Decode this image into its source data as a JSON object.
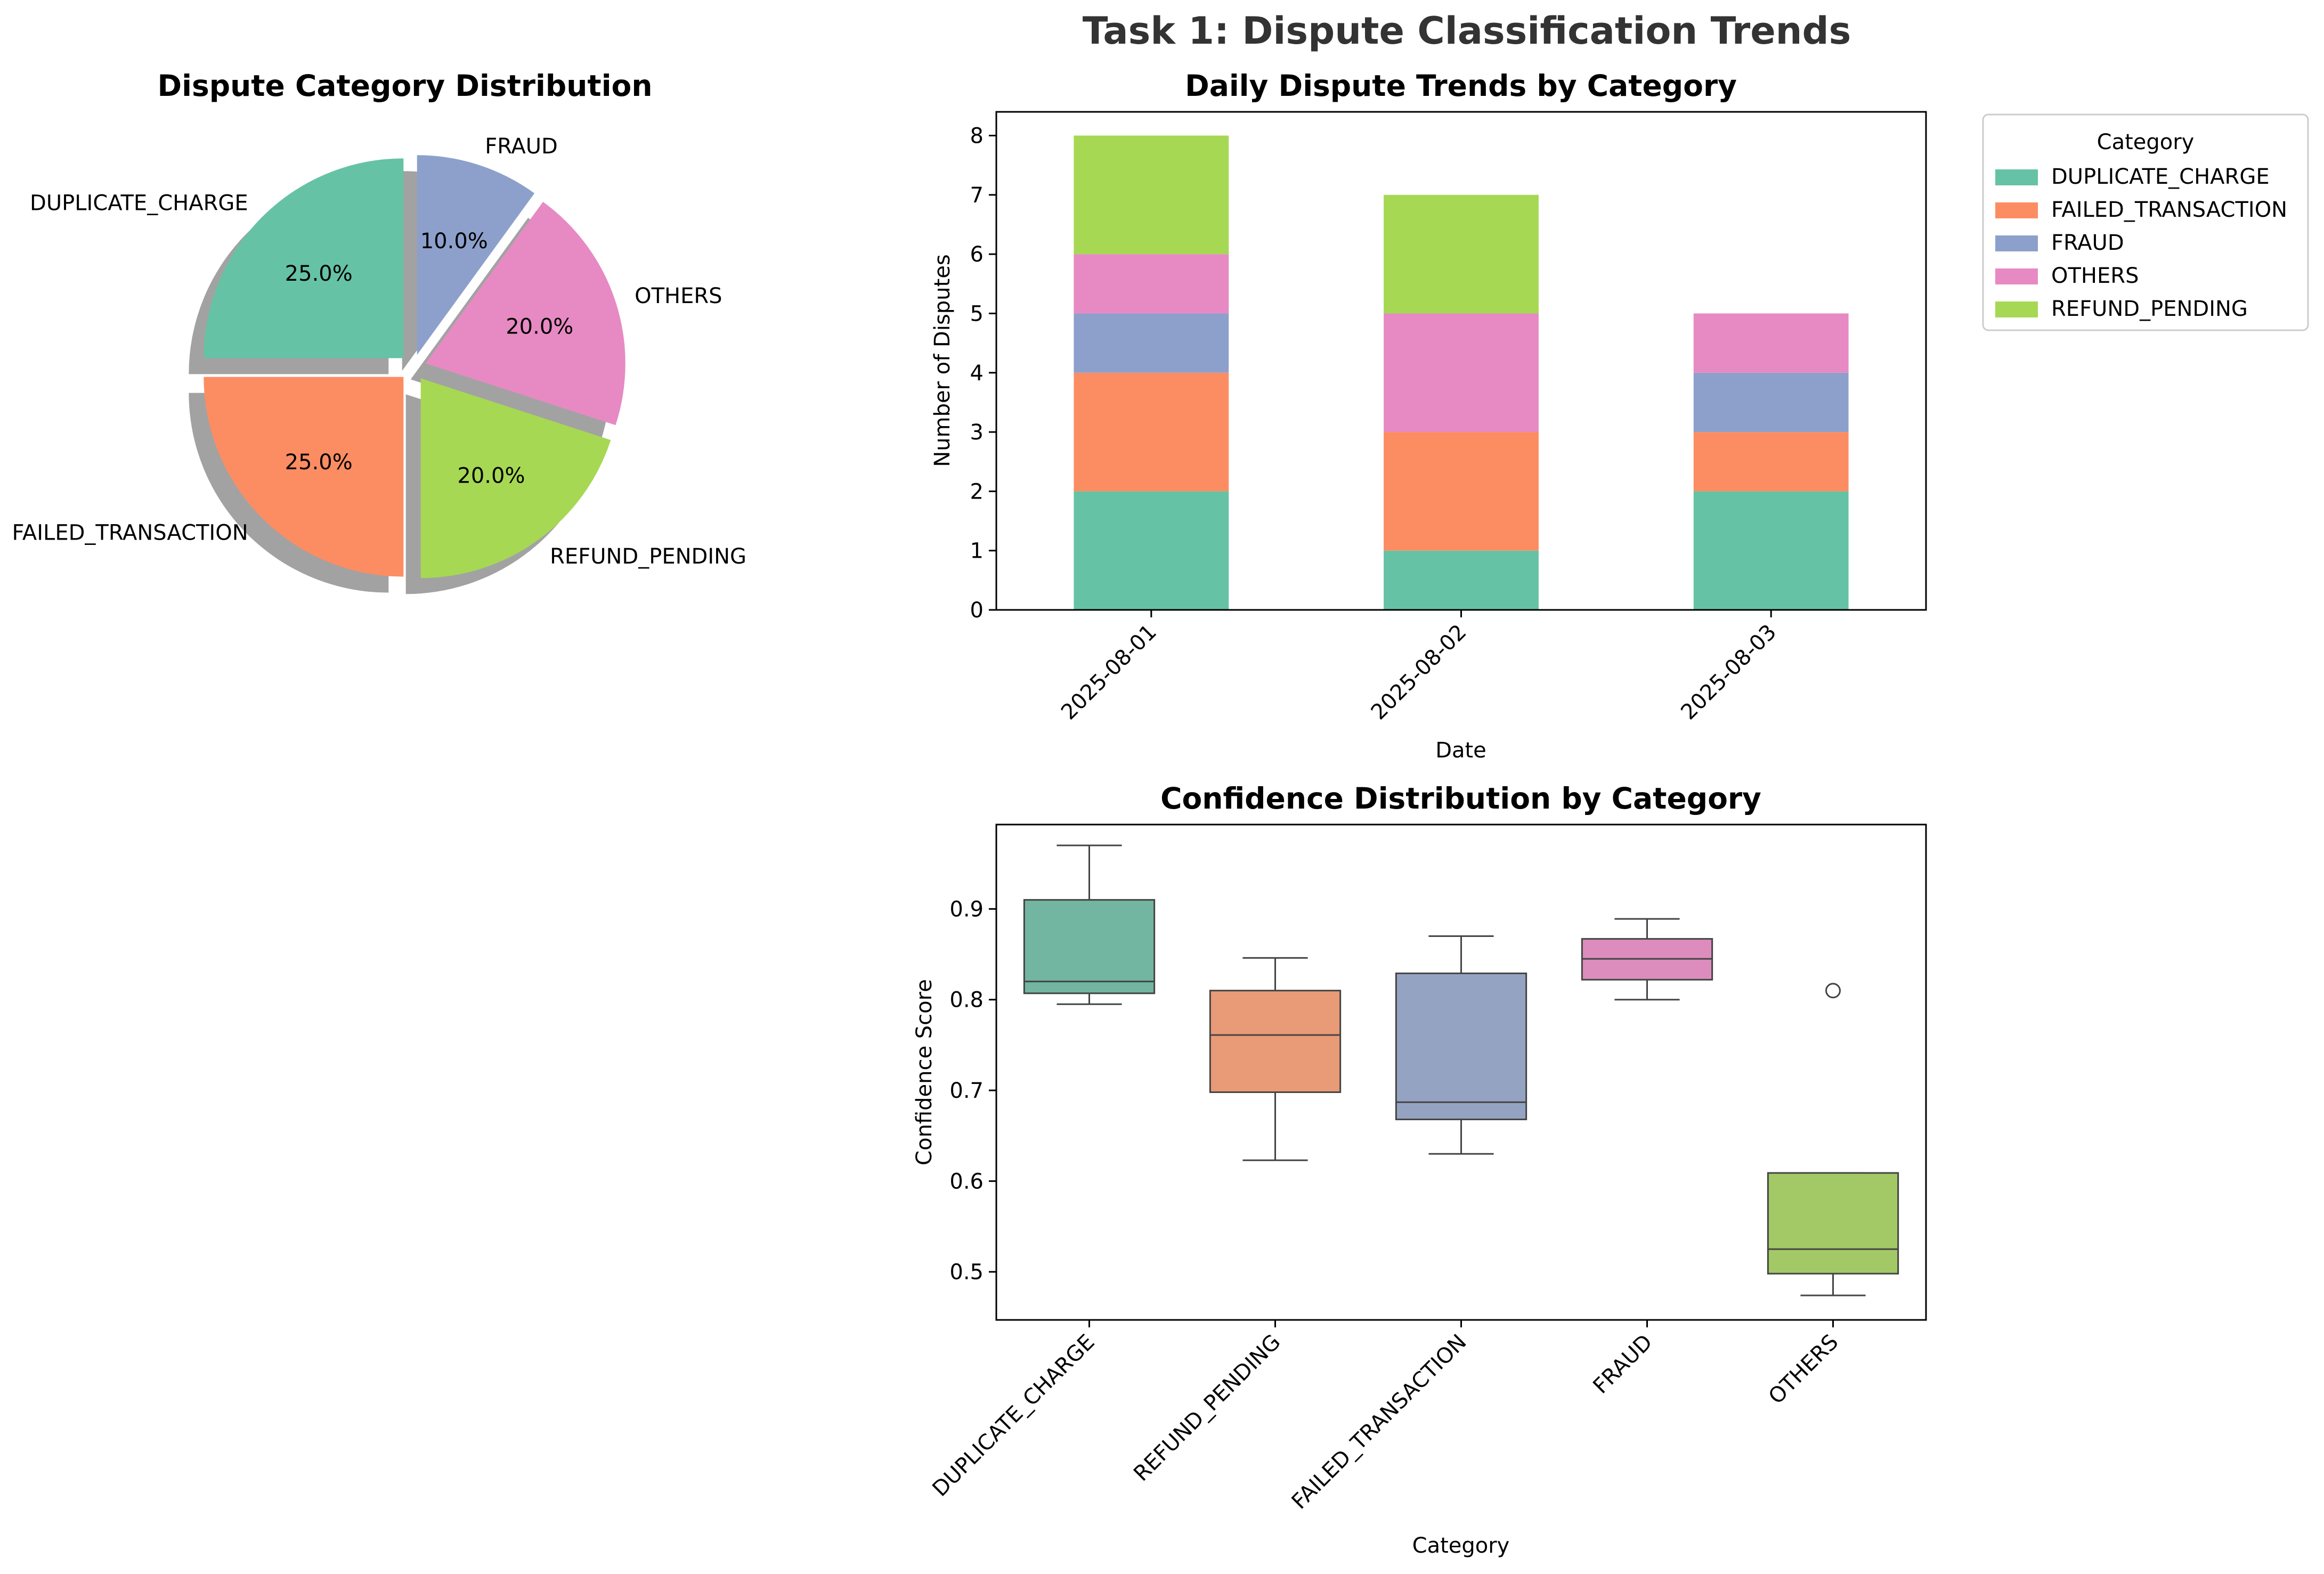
{
  "figure_title": "Task 1: Dispute Classification Trends",
  "colors": {
    "DUPLICATE_CHARGE": "#66c2a5",
    "FAILED_TRANSACTION": "#fc8d62",
    "FRAUD": "#8da0cb",
    "OTHERS": "#e78ac3",
    "REFUND_PENDING": "#a6d854",
    "box_DUPLICATE_CHARGE": "#72b5a0",
    "box_REFUND_PENDING": "#e99a76",
    "box_FAILED_TRANSACTION": "#95a3c3",
    "box_FRAUD": "#dc8dbd",
    "box_OTHERS": "#a2c965"
  },
  "chart_data": [
    {
      "type": "pie",
      "title": "Dispute Category Distribution",
      "slices": [
        {
          "label": "DUPLICATE_CHARGE",
          "value": 25.0,
          "pct_label": "25.0%"
        },
        {
          "label": "FAILED_TRANSACTION",
          "value": 25.0,
          "pct_label": "25.0%"
        },
        {
          "label": "REFUND_PENDING",
          "value": 20.0,
          "pct_label": "20.0%"
        },
        {
          "label": "OTHERS",
          "value": 20.0,
          "pct_label": "20.0%"
        },
        {
          "label": "FRAUD",
          "value": 10.0,
          "pct_label": "10.0%"
        }
      ],
      "start_angle_deg": 90,
      "direction": "counterclockwise",
      "exploded": true,
      "shadow": true
    },
    {
      "type": "bar",
      "stacked": true,
      "title": "Daily Dispute Trends by Category",
      "xlabel": "Date",
      "ylabel": "Number of Disputes",
      "categories": [
        "2025-08-01",
        "2025-08-02",
        "2025-08-03"
      ],
      "ylim": [
        0,
        8.4
      ],
      "yticks": [
        0,
        1,
        2,
        3,
        4,
        5,
        6,
        7,
        8
      ],
      "series": [
        {
          "name": "DUPLICATE_CHARGE",
          "values": [
            2,
            1,
            2
          ]
        },
        {
          "name": "FAILED_TRANSACTION",
          "values": [
            2,
            2,
            1
          ]
        },
        {
          "name": "FRAUD",
          "values": [
            1,
            0,
            1
          ]
        },
        {
          "name": "OTHERS",
          "values": [
            1,
            2,
            1
          ]
        },
        {
          "name": "REFUND_PENDING",
          "values": [
            2,
            2,
            0
          ]
        }
      ],
      "legend_title": "Category",
      "legend_position": "outside-upper-right"
    },
    {
      "type": "box",
      "title": "Confidence Distribution by Category",
      "xlabel": "Category",
      "ylabel": "Confidence Score",
      "ylim": [
        0.447,
        0.993
      ],
      "yticks": [
        0.5,
        0.6,
        0.7,
        0.8,
        0.9
      ],
      "ytick_labels": [
        "0.5",
        "0.6",
        "0.7",
        "0.8",
        "0.9"
      ],
      "boxes": [
        {
          "category": "DUPLICATE_CHARGE",
          "whisker_low": 0.795,
          "q1": 0.807,
          "median": 0.82,
          "q3": 0.91,
          "whisker_high": 0.97,
          "outliers": []
        },
        {
          "category": "REFUND_PENDING",
          "whisker_low": 0.623,
          "q1": 0.698,
          "median": 0.761,
          "q3": 0.81,
          "whisker_high": 0.846,
          "outliers": []
        },
        {
          "category": "FAILED_TRANSACTION",
          "whisker_low": 0.63,
          "q1": 0.668,
          "median": 0.687,
          "q3": 0.829,
          "whisker_high": 0.87,
          "outliers": []
        },
        {
          "category": "FRAUD",
          "whisker_low": 0.8,
          "q1": 0.822,
          "median": 0.845,
          "q3": 0.867,
          "whisker_high": 0.889,
          "outliers": []
        },
        {
          "category": "OTHERS",
          "whisker_low": 0.474,
          "q1": 0.498,
          "median": 0.525,
          "q3": 0.609,
          "whisker_high": 0.609,
          "outliers": [
            0.81
          ]
        }
      ]
    }
  ]
}
